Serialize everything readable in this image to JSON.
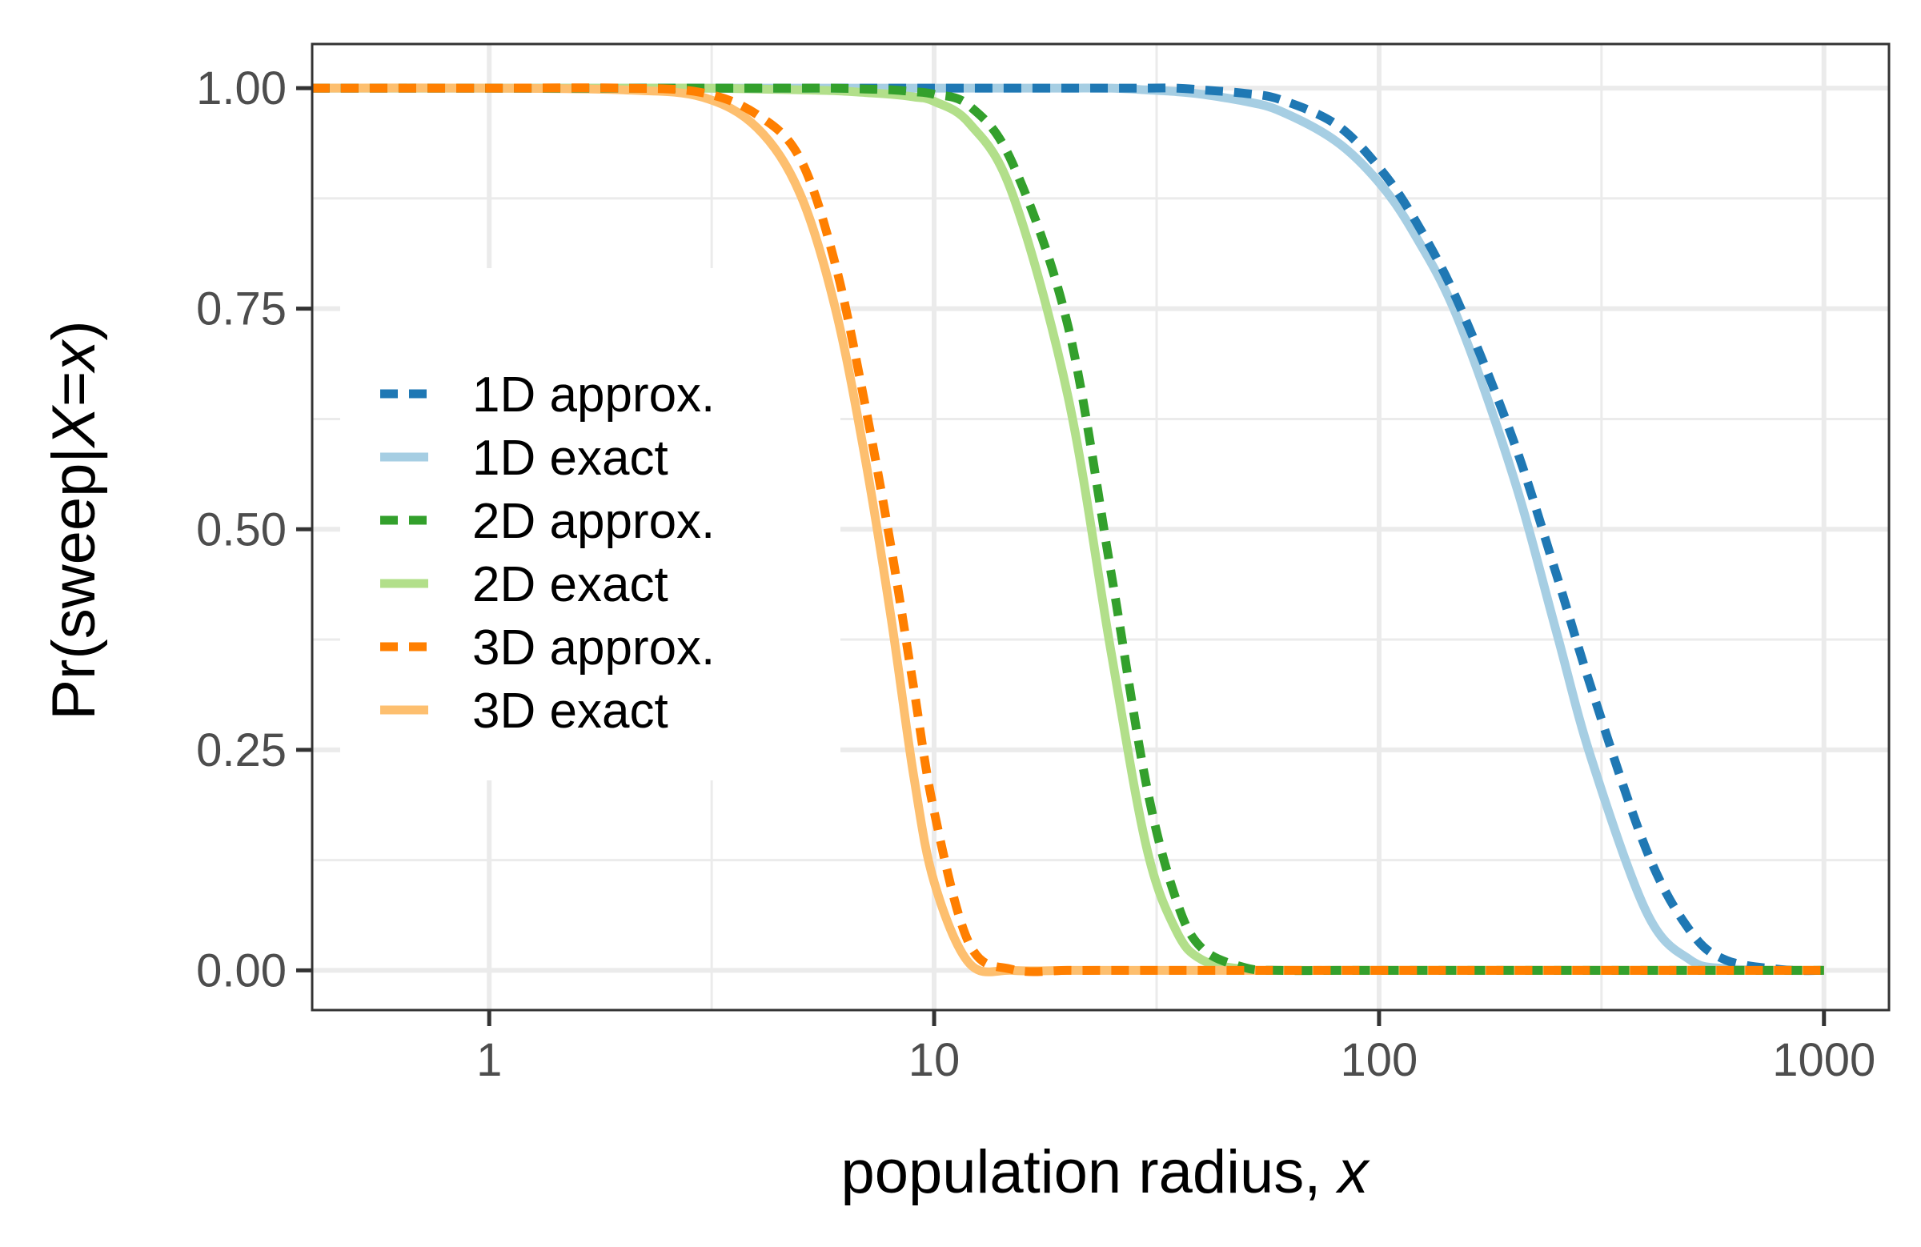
{
  "chart_data": {
    "type": "line",
    "xlabel_parts": [
      "population radius, ",
      "x"
    ],
    "ylabel_parts": [
      "Pr(sweep|",
      "X",
      "=",
      "x",
      ")"
    ],
    "x_scale": "log10",
    "xlim": [
      0.4,
      1400
    ],
    "ylim": [
      -0.045,
      1.05
    ],
    "x_ticks": [
      1,
      10,
      100,
      1000
    ],
    "x_tick_labels": [
      "1",
      "10",
      "100",
      "1000"
    ],
    "y_ticks": [
      0,
      0.25,
      0.5,
      0.75,
      1
    ],
    "y_tick_labels": [
      "0.00",
      "0.25",
      "0.50",
      "0.75",
      "1.00"
    ],
    "grid": true,
    "legend_position": "left",
    "x_values": [
      0.4,
      1,
      2,
      3,
      4,
      5,
      6,
      7,
      8,
      9,
      10,
      12,
      15,
      20,
      25,
      30,
      35,
      40,
      50,
      60,
      80,
      100,
      120,
      150,
      200,
      250,
      300,
      400,
      500,
      600,
      800,
      1000
    ],
    "series": [
      {
        "name": "1D approx.",
        "color": "#1f78b4",
        "style": "dashed",
        "values": [
          1,
          1,
          1,
          1,
          1,
          1,
          1,
          1,
          1,
          1,
          1,
          1,
          1,
          1,
          1,
          1,
          1,
          0.998,
          0.994,
          0.987,
          0.959,
          0.91,
          0.852,
          0.759,
          0.602,
          0.45,
          0.32,
          0.135,
          0.045,
          0.012,
          0.001,
          0
        ]
      },
      {
        "name": "1D exact",
        "color": "#a6cee3",
        "style": "solid",
        "values": [
          1,
          1,
          1,
          1,
          1,
          1,
          1,
          1,
          1,
          1,
          1,
          1,
          1,
          1,
          1,
          0.998,
          0.996,
          0.993,
          0.985,
          0.974,
          0.94,
          0.893,
          0.835,
          0.74,
          0.561,
          0.385,
          0.24,
          0.065,
          0.012,
          0.002,
          0,
          0
        ]
      },
      {
        "name": "2D approx.",
        "color": "#33a02c",
        "style": "dashed",
        "values": [
          1,
          1,
          1,
          1,
          1,
          1,
          1,
          0.999,
          0.998,
          0.996,
          0.993,
          0.98,
          0.915,
          0.73,
          0.45,
          0.21,
          0.08,
          0.025,
          0.003,
          0,
          0,
          0,
          0,
          0,
          0,
          0,
          0,
          0,
          0,
          0,
          0,
          0
        ]
      },
      {
        "name": "2D exact",
        "color": "#b2df8a",
        "style": "solid",
        "values": [
          1,
          1,
          1,
          1,
          0.999,
          0.998,
          0.997,
          0.995,
          0.993,
          0.99,
          0.985,
          0.96,
          0.88,
          0.65,
          0.36,
          0.14,
          0.045,
          0.012,
          0.001,
          0,
          0,
          0,
          0,
          0,
          0,
          0,
          0,
          0,
          0,
          0,
          0,
          0
        ]
      },
      {
        "name": "3D approx.",
        "color": "#ff7f00",
        "style": "dashed",
        "values": [
          1,
          1,
          1,
          0.995,
          0.97,
          0.92,
          0.8,
          0.64,
          0.48,
          0.32,
          0.18,
          0.03,
          0.001,
          0,
          0,
          0,
          0,
          0,
          0,
          0,
          0,
          0,
          0,
          0,
          0,
          0,
          0,
          0,
          0,
          0,
          0,
          0
        ]
      },
      {
        "name": "3D exact",
        "color": "#fdbf6f",
        "style": "solid",
        "values": [
          1,
          1,
          0.998,
          0.99,
          0.955,
          0.88,
          0.75,
          0.58,
          0.4,
          0.22,
          0.1,
          0.008,
          0,
          0,
          0,
          0,
          0,
          0,
          0,
          0,
          0,
          0,
          0,
          0,
          0,
          0,
          0,
          0,
          0,
          0,
          0,
          0
        ]
      }
    ]
  }
}
